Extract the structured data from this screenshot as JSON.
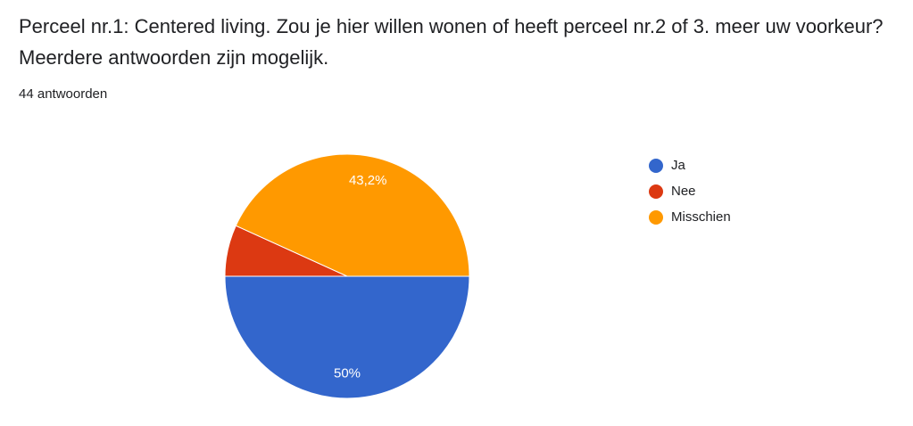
{
  "question": {
    "title": "Perceel nr.1: Centered living. Zou je hier willen wonen of heeft perceel nr.2 of 3. meer uw voorkeur? Meerdere antwoorden zijn mogelijk.",
    "response_count": "44 antwoorden"
  },
  "chart_data": {
    "type": "pie",
    "title": "",
    "categories": [
      "Ja",
      "Nee",
      "Misschien"
    ],
    "values": [
      50,
      6.8,
      43.2
    ],
    "data_labels": [
      "50%",
      "",
      "43,2%"
    ],
    "colors": [
      "#3366CC",
      "#DC3912",
      "#FF9900"
    ],
    "start": "3 o'clock, clockwise",
    "legend_position": "right"
  }
}
